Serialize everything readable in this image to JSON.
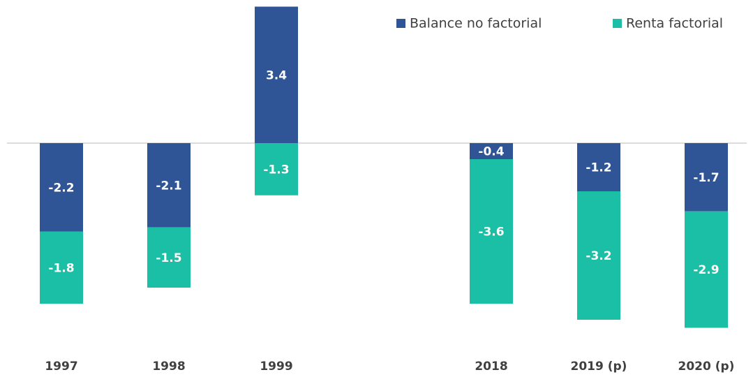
{
  "chart_data": {
    "type": "bar",
    "stacked": true,
    "categories": [
      "1997",
      "1998",
      "1999",
      null,
      "2018",
      "2019 (p)",
      "2020 (p)"
    ],
    "series": [
      {
        "name": "Balance no factorial",
        "color": "#2f5597",
        "values": [
          -2.2,
          -2.1,
          3.4,
          null,
          -0.4,
          -1.2,
          -1.7
        ]
      },
      {
        "name": "Renta factorial",
        "color": "#1abfa5",
        "values": [
          -1.8,
          -1.5,
          -1.3,
          null,
          -3.6,
          -3.2,
          -2.9
        ]
      }
    ],
    "ylim": [
      -5.0,
      3.5
    ],
    "legend": "top-right"
  }
}
